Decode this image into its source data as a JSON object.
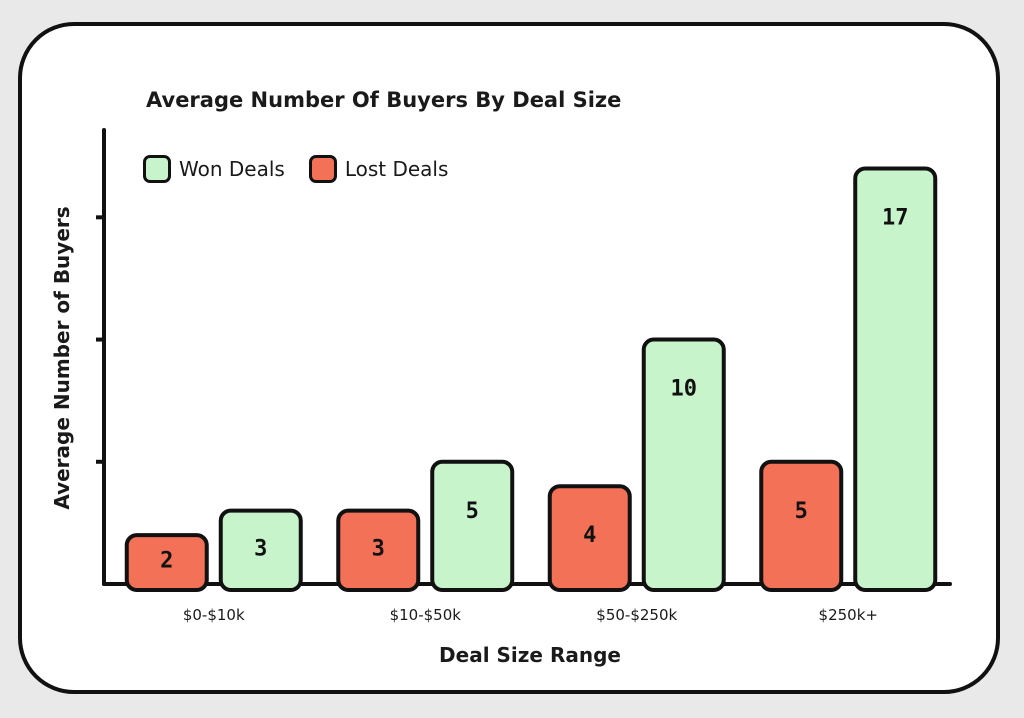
{
  "chart_data": {
    "type": "bar",
    "title": "Average Number Of Buyers By Deal Size",
    "xlabel": "Deal Size Range",
    "ylabel": "Average Number of Buyers",
    "categories": [
      "$0-$10k",
      "$10-$50k",
      "$50-$250k",
      "$250k+"
    ],
    "series": [
      {
        "name": "Lost Deals",
        "values": [
          2,
          3,
          4,
          5
        ],
        "color": "#f27157"
      },
      {
        "name": "Won Deals",
        "values": [
          3,
          5,
          10,
          17
        ],
        "color": "#c8f4cc"
      }
    ],
    "ylim": [
      0,
      18
    ],
    "legend_position": "top-left",
    "grid": false
  }
}
